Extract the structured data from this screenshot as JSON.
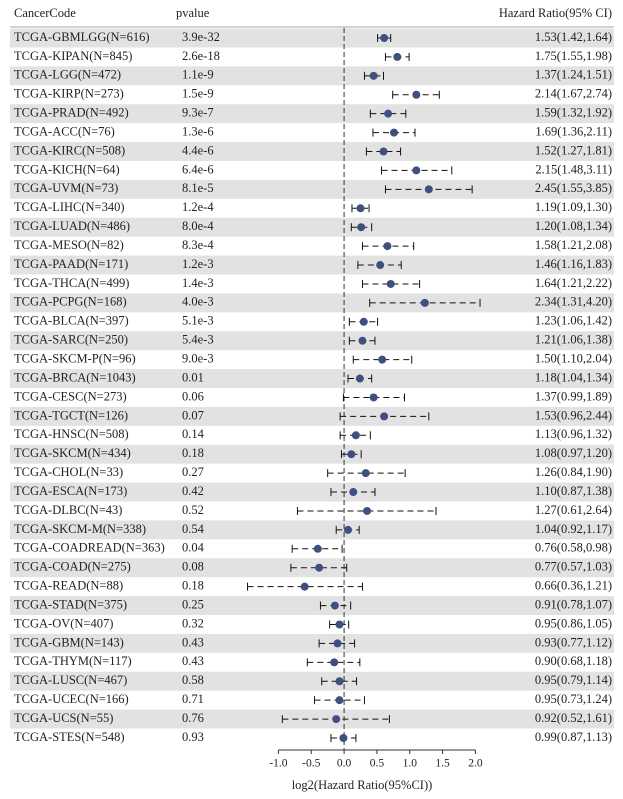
{
  "chart_data": {
    "type": "forest",
    "columns": [
      "CancerCode",
      "pvalue",
      "Hazard Ratio(95% CI)"
    ],
    "x_label": "log2(Hazard Ratio(95%CI))",
    "categories": [
      "TCGA-GBMLGG(N=616)",
      "TCGA-KIPAN(N=845)",
      "TCGA-LGG(N=472)",
      "TCGA-KIRP(N=273)",
      "TCGA-PRAD(N=492)",
      "TCGA-ACC(N=76)",
      "TCGA-KIRC(N=508)",
      "TCGA-KICH(N=64)",
      "TCGA-UVM(N=73)",
      "TCGA-LIHC(N=340)",
      "TCGA-LUAD(N=486)",
      "TCGA-MESO(N=82)",
      "TCGA-PAAD(N=171)",
      "TCGA-THCA(N=499)",
      "TCGA-PCPG(N=168)",
      "TCGA-BLCA(N=397)",
      "TCGA-SARC(N=250)",
      "TCGA-SKCM-P(N=96)",
      "TCGA-BRCA(N=1043)",
      "TCGA-CESC(N=273)",
      "TCGA-TGCT(N=126)",
      "TCGA-HNSC(N=508)",
      "TCGA-SKCM(N=434)",
      "TCGA-CHOL(N=33)",
      "TCGA-ESCA(N=173)",
      "TCGA-DLBC(N=43)",
      "TCGA-SKCM-M(N=338)",
      "TCGA-COADREAD(N=363)",
      "TCGA-COAD(N=275)",
      "TCGA-READ(N=88)",
      "TCGA-STAD(N=375)",
      "TCGA-OV(N=407)",
      "TCGA-GBM(N=143)",
      "TCGA-THYM(N=117)",
      "TCGA-LUSC(N=467)",
      "TCGA-UCEC(N=166)",
      "TCGA-UCS(N=55)",
      "TCGA-STES(N=548)"
    ],
    "pvalues": [
      "3.9e-32",
      "2.6e-18",
      "1.1e-9",
      "1.5e-9",
      "9.3e-7",
      "1.3e-6",
      "4.4e-6",
      "6.4e-6",
      "8.1e-5",
      "1.2e-4",
      "8.0e-4",
      "8.3e-4",
      "1.2e-3",
      "1.4e-3",
      "4.0e-3",
      "5.1e-3",
      "5.4e-3",
      "9.0e-3",
      "0.01",
      "0.06",
      "0.07",
      "0.14",
      "0.18",
      "0.27",
      "0.42",
      "0.52",
      "0.54",
      "0.04",
      "0.08",
      "0.18",
      "0.25",
      "0.32",
      "0.43",
      "0.43",
      "0.58",
      "0.71",
      "0.76",
      "0.93"
    ],
    "hr_labels": [
      "1.53(1.42,1.64)",
      "1.75(1.55,1.98)",
      "1.37(1.24,1.51)",
      "2.14(1.67,2.74)",
      "1.59(1.32,1.92)",
      "1.69(1.36,2.11)",
      "1.52(1.27,1.81)",
      "2.15(1.48,3.11)",
      "2.45(1.55,3.85)",
      "1.19(1.09,1.30)",
      "1.20(1.08,1.34)",
      "1.58(1.21,2.08)",
      "1.46(1.16,1.83)",
      "1.64(1.21,2.22)",
      "2.34(1.31,4.20)",
      "1.23(1.06,1.42)",
      "1.21(1.06,1.38)",
      "1.50(1.10,2.04)",
      "1.18(1.04,1.34)",
      "1.37(0.99,1.89)",
      "1.53(0.96,2.44)",
      "1.13(0.96,1.32)",
      "1.08(0.97,1.20)",
      "1.26(0.84,1.90)",
      "1.10(0.87,1.38)",
      "1.27(0.61,2.64)",
      "1.04(0.92,1.17)",
      "0.76(0.58,0.98)",
      "0.77(0.57,1.03)",
      "0.66(0.36,1.21)",
      "0.91(0.78,1.07)",
      "0.95(0.86,1.05)",
      "0.93(0.77,1.12)",
      "0.90(0.68,1.18)",
      "0.95(0.79,1.14)",
      "0.95(0.73,1.24)",
      "0.92(0.52,1.61)",
      "0.99(0.87,1.13)"
    ],
    "values": [
      0.61,
      0.81,
      0.45,
      1.1,
      0.67,
      0.76,
      0.6,
      1.1,
      1.29,
      0.25,
      0.26,
      0.66,
      0.55,
      0.71,
      1.23,
      0.3,
      0.28,
      0.58,
      0.24,
      0.45,
      0.61,
      0.18,
      0.11,
      0.33,
      0.14,
      0.35,
      0.06,
      -0.4,
      -0.38,
      -0.6,
      -0.14,
      -0.07,
      -0.1,
      -0.15,
      -0.07,
      -0.07,
      -0.12,
      -0.01
    ],
    "lower": [
      0.51,
      0.63,
      0.31,
      0.74,
      0.4,
      0.44,
      0.34,
      0.57,
      0.63,
      0.12,
      0.11,
      0.28,
      0.21,
      0.28,
      0.39,
      0.08,
      0.08,
      0.14,
      0.06,
      -0.01,
      -0.06,
      -0.06,
      -0.04,
      -0.25,
      -0.2,
      -0.71,
      -0.12,
      -0.79,
      -0.81,
      -1.47,
      -0.36,
      -0.22,
      -0.38,
      -0.56,
      -0.34,
      -0.45,
      -0.94,
      -0.2
    ],
    "upper": [
      0.71,
      0.99,
      0.6,
      1.45,
      0.94,
      1.08,
      0.86,
      1.64,
      1.95,
      0.38,
      0.42,
      1.06,
      0.87,
      1.15,
      2.07,
      0.51,
      0.47,
      1.03,
      0.42,
      0.92,
      1.29,
      0.4,
      0.26,
      0.93,
      0.47,
      1.4,
      0.23,
      -0.03,
      0.04,
      0.28,
      0.1,
      0.07,
      0.16,
      0.24,
      0.19,
      0.31,
      0.69,
      0.18
    ],
    "xlim": [
      -1.6,
      2.1
    ],
    "xticks": [
      {
        "value": -1,
        "label": "-1.0"
      },
      {
        "value": -0.5,
        "label": "-0.5"
      },
      {
        "value": 0,
        "label": "0.0"
      },
      0.5,
      {
        "value": 1,
        "label": "1.0"
      },
      1.5,
      {
        "value": 2,
        "label": "2.0"
      }
    ],
    "ref_line": 0,
    "color": "#3f4f80",
    "stripe_color": "#e2e2e2"
  }
}
